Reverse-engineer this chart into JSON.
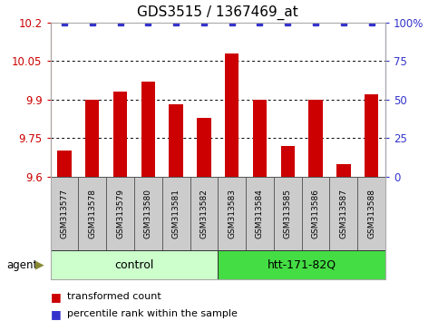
{
  "title": "GDS3515 / 1367469_at",
  "samples": [
    "GSM313577",
    "GSM313578",
    "GSM313579",
    "GSM313580",
    "GSM313581",
    "GSM313582",
    "GSM313583",
    "GSM313584",
    "GSM313585",
    "GSM313586",
    "GSM313587",
    "GSM313588"
  ],
  "values": [
    9.7,
    9.9,
    9.93,
    9.97,
    9.88,
    9.83,
    10.08,
    9.9,
    9.72,
    9.9,
    9.65,
    9.92
  ],
  "percentile_ranks": [
    100,
    100,
    100,
    100,
    100,
    100,
    100,
    100,
    100,
    100,
    100,
    100
  ],
  "bar_color": "#cc0000",
  "dot_color": "#3333cc",
  "ylim_left": [
    9.6,
    10.2
  ],
  "ylim_right": [
    0,
    100
  ],
  "yticks_left": [
    9.6,
    9.75,
    9.9,
    10.05,
    10.2
  ],
  "yticks_right": [
    0,
    25,
    50,
    75,
    100
  ],
  "ytick_labels_left": [
    "9.6",
    "9.75",
    "9.9",
    "10.05",
    "10.2"
  ],
  "ytick_labels_right": [
    "0",
    "25",
    "50",
    "75",
    "100%"
  ],
  "gridlines": [
    9.75,
    9.9,
    10.05
  ],
  "n_control": 6,
  "n_htt": 6,
  "control_label": "control",
  "htt_label": "htt-171-82Q",
  "agent_label": "agent",
  "legend_items": [
    "transformed count",
    "percentile rank within the sample"
  ],
  "control_bg": "#ccffcc",
  "htt_bg": "#44dd44",
  "sample_box_bg": "#cccccc",
  "bar_width": 0.5,
  "title_fontsize": 11,
  "tick_fontsize": 8.5,
  "label_fontsize": 9
}
